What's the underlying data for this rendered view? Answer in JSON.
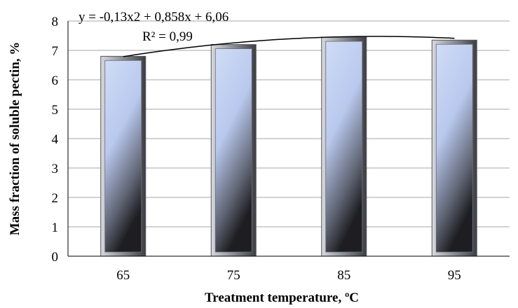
{
  "chart_data": {
    "type": "bar",
    "categories": [
      "65",
      "75",
      "85",
      "95"
    ],
    "values": [
      6.8,
      7.2,
      7.45,
      7.35
    ],
    "xlabel": "Treatment temperature, ºC",
    "ylabel": "Mass fraction of soluble pectin, %",
    "ylim": [
      0,
      8
    ],
    "yticks": [
      "0",
      "1",
      "2",
      "3",
      "4",
      "5",
      "6",
      "7",
      "8"
    ],
    "grid": true,
    "legend": "none",
    "trendline": {
      "type": "polynomial",
      "coefficients": [
        -0.13,
        0.858,
        6.06
      ],
      "equation": "y = -0,13x2 + 0,858x + 6,06",
      "r_squared": "R² = 0,99"
    },
    "colors": {
      "bar_top": "#c9d6f2",
      "bar_bottom": "#2e2e33",
      "frame": "#7f8087",
      "grid": "#a6a6a6"
    }
  }
}
